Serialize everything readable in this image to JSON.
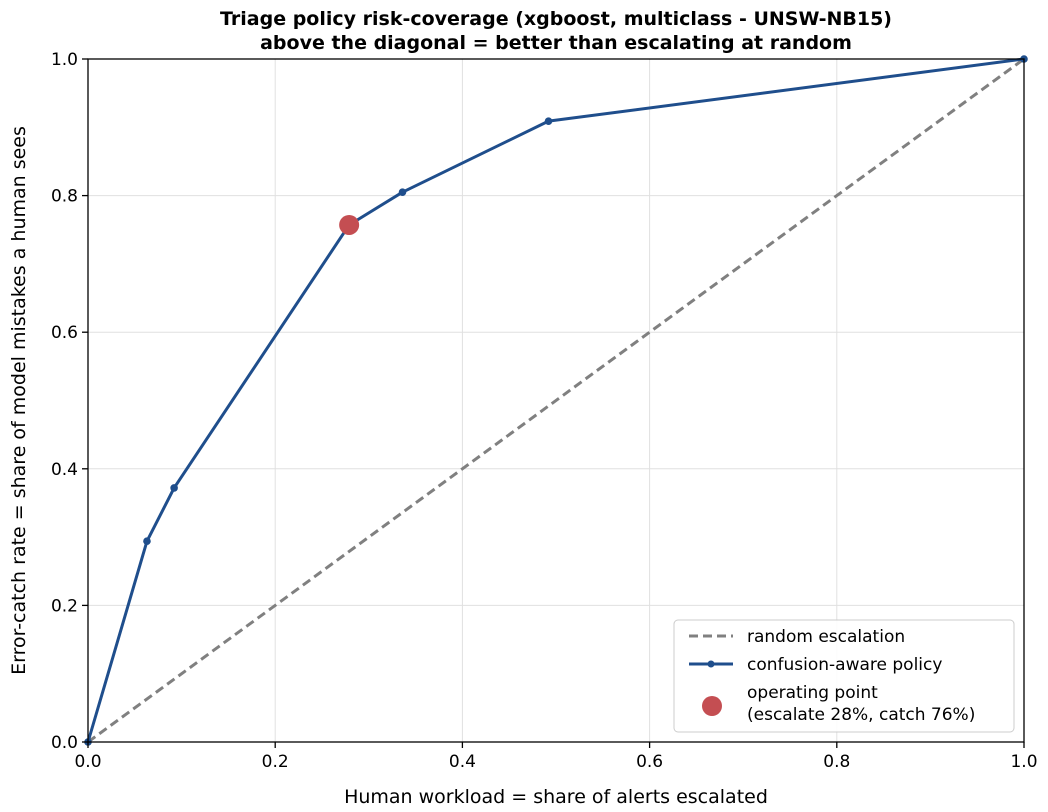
{
  "chart_data": {
    "type": "line",
    "title_line1": "Triage policy risk-coverage (xgboost, multiclass - UNSW-NB15)",
    "title_line2": "above the diagonal = better than escalating at random",
    "xlabel": "Human workload  =  share of alerts escalated",
    "ylabel": "Error-catch rate  =  share of model mistakes a human sees",
    "xlim": [
      0,
      1
    ],
    "ylim": [
      0,
      1
    ],
    "xticks": [
      "0.0",
      "0.2",
      "0.4",
      "0.6",
      "0.8",
      "1.0"
    ],
    "yticks": [
      "0.0",
      "0.2",
      "0.4",
      "0.6",
      "0.8",
      "1.0"
    ],
    "grid": true,
    "legend_position": "lower-right",
    "series": [
      {
        "name": "random escalation",
        "style": "dashed",
        "color": "#808080",
        "x": [
          0,
          1
        ],
        "y": [
          0,
          1
        ]
      },
      {
        "name": "confusion-aware policy",
        "style": "solid-with-markers",
        "color": "#1f4e8c",
        "x": [
          0.0,
          0.063,
          0.092,
          0.279,
          0.336,
          0.492,
          1.0
        ],
        "y": [
          0.0,
          0.294,
          0.372,
          0.757,
          0.805,
          0.909,
          1.0
        ]
      }
    ],
    "operating_point": {
      "label_line1": "operating point",
      "label_line2": "(escalate 28%, catch 76%)",
      "x": 0.279,
      "y": 0.757,
      "color": "#c44e52"
    }
  }
}
